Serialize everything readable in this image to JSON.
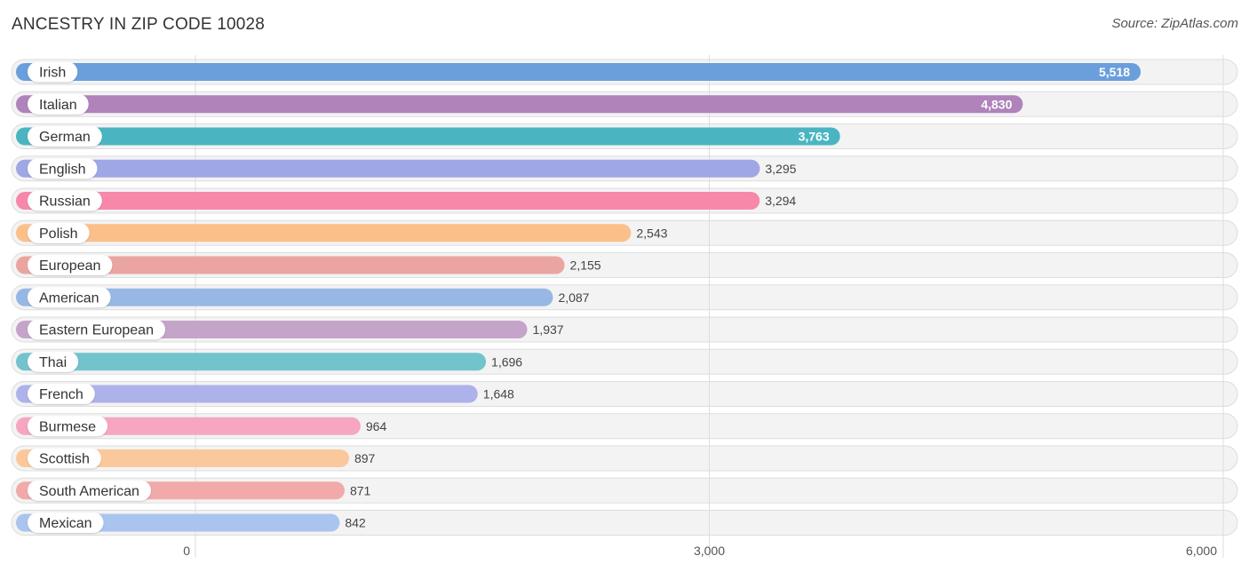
{
  "title": "ANCESTRY IN ZIP CODE 10028",
  "source": "Source: ZipAtlas.com",
  "chart_data": {
    "type": "bar",
    "orientation": "horizontal",
    "title": "ANCESTRY IN ZIP CODE 10028",
    "categories": [
      "Irish",
      "Italian",
      "German",
      "English",
      "Russian",
      "Polish",
      "European",
      "American",
      "Eastern European",
      "Thai",
      "French",
      "Burmese",
      "Scottish",
      "South American",
      "Mexican"
    ],
    "values": [
      5518,
      4830,
      3763,
      3295,
      3294,
      2543,
      2155,
      2087,
      1937,
      1696,
      1648,
      964,
      897,
      871,
      842
    ],
    "value_labels": [
      "5,518",
      "4,830",
      "3,763",
      "3,295",
      "3,294",
      "2,543",
      "2,155",
      "2,087",
      "1,937",
      "1,696",
      "1,648",
      "964",
      "897",
      "871",
      "842"
    ],
    "colors": [
      "#6a9fdc",
      "#b083bb",
      "#4ab5c1",
      "#9fa7e4",
      "#f788aa",
      "#fbc08a",
      "#eba5a1",
      "#97b8e4",
      "#c5a4ca",
      "#72c3cc",
      "#adb2ea",
      "#f6a6c1",
      "#fbc89c",
      "#f1aaa9",
      "#a9c4ee"
    ],
    "xlim": [
      0,
      6000
    ],
    "xticks": [
      0,
      3000,
      6000
    ],
    "xtick_labels": [
      "0",
      "3,000",
      "6,000"
    ],
    "grid": true,
    "xlabel": "",
    "ylabel": ""
  }
}
